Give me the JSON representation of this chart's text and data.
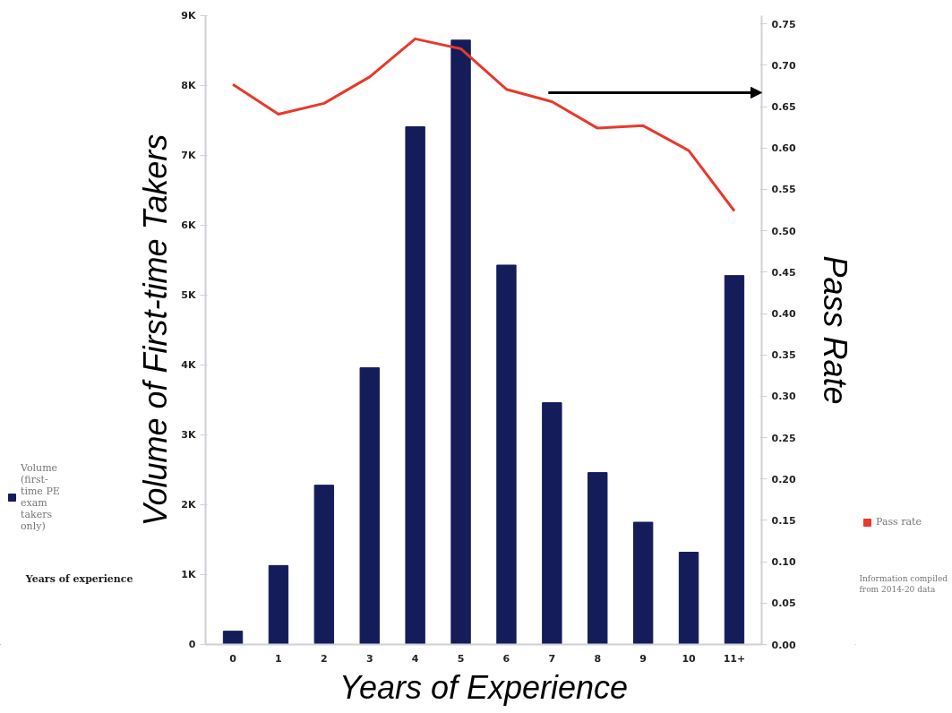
{
  "chart_data": {
    "type": "bar",
    "xlabel": "Years of Experience",
    "ylabel": "Volume of First-time Takers",
    "y2label": "Pass Rate",
    "categories": [
      "0",
      "1",
      "2",
      "3",
      "4",
      "5",
      "6",
      "7",
      "8",
      "9",
      "10",
      "11+"
    ],
    "series": [
      {
        "name": "Volume (first-time PE exam takers only)",
        "color": "#141c5a",
        "values": [
          190,
          1130,
          2280,
          3960,
          7410,
          8650,
          5430,
          3460,
          2460,
          1750,
          1320,
          5280
        ]
      },
      {
        "name": "Pass rate",
        "type": "line",
        "axis": "y2",
        "color": "#e8392c",
        "values": [
          0.677,
          0.641,
          0.654,
          0.686,
          0.732,
          0.72,
          0.671,
          0.656,
          0.624,
          0.627,
          0.597,
          0.524
        ]
      }
    ],
    "ylim": [
      0,
      9000
    ],
    "yticks": [
      {
        "value": 0,
        "label": "0"
      },
      {
        "value": 1000,
        "label": "1K"
      },
      {
        "value": 2000,
        "label": "2K"
      },
      {
        "value": 3000,
        "label": "3K"
      },
      {
        "value": 4000,
        "label": "4K"
      },
      {
        "value": 5000,
        "label": "5K"
      },
      {
        "value": 6000,
        "label": "6K"
      },
      {
        "value": 7000,
        "label": "7K"
      },
      {
        "value": 8000,
        "label": "8K"
      },
      {
        "value": 9000,
        "label": "9K"
      }
    ],
    "y2lim": [
      0,
      0.76
    ],
    "y2ticks": [
      {
        "value": 0,
        "label": "0.00"
      },
      {
        "value": 0.05,
        "label": "0.05"
      },
      {
        "value": 0.1,
        "label": "0.10"
      },
      {
        "value": 0.15,
        "label": "0.15"
      },
      {
        "value": 0.2,
        "label": "0.20"
      },
      {
        "value": 0.25,
        "label": "0.25"
      },
      {
        "value": 0.3,
        "label": "0.30"
      },
      {
        "value": 0.35,
        "label": "0.35"
      },
      {
        "value": 0.4,
        "label": "0.40"
      },
      {
        "value": 0.45,
        "label": "0.45"
      },
      {
        "value": 0.5,
        "label": "0.50"
      },
      {
        "value": 0.55,
        "label": "0.55"
      },
      {
        "value": 0.6,
        "label": "0.60"
      },
      {
        "value": 0.65,
        "label": "0.65"
      },
      {
        "value": 0.7,
        "label": "0.70"
      },
      {
        "value": 0.75,
        "label": "0.75"
      }
    ],
    "annotations": [
      "Years of experience",
      "Information compiled from 2014-20 data"
    ],
    "legend": "left",
    "grid": false
  }
}
